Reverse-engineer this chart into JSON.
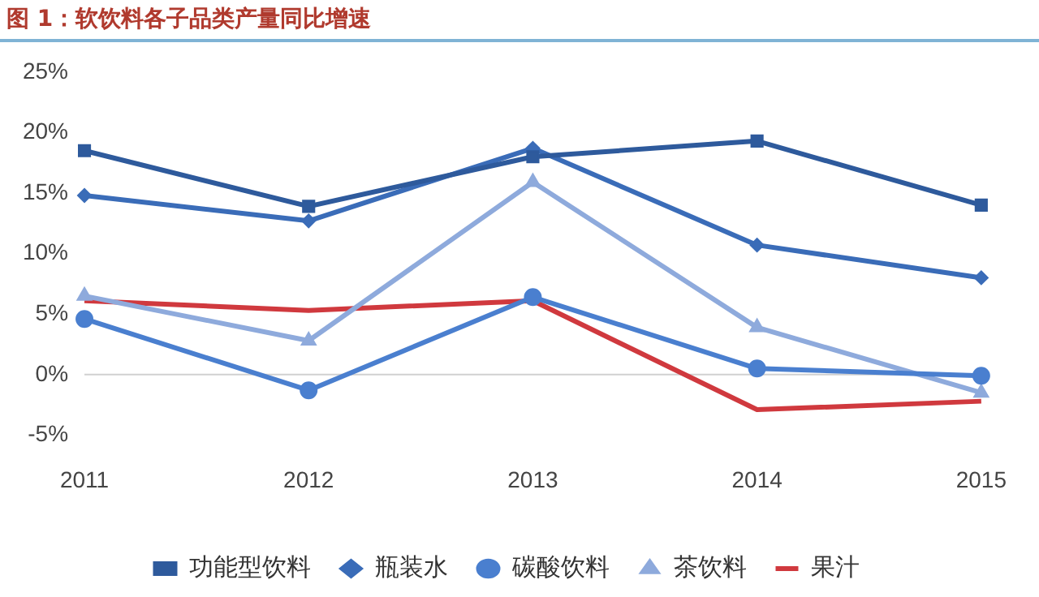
{
  "chart_data": {
    "type": "line",
    "title": "图 1：软饮料各子品类产量同比增速",
    "categories": [
      "2011",
      "2012",
      "2013",
      "2014",
      "2015"
    ],
    "series": [
      {
        "name": "功能型饮料",
        "color": "#2e5a9c",
        "marker": "square",
        "values": [
          18.5,
          13.9,
          18.0,
          19.3,
          14.0
        ]
      },
      {
        "name": "瓶装水",
        "color": "#3a6cb8",
        "marker": "diamond",
        "values": [
          14.8,
          12.7,
          18.7,
          10.7,
          8.0
        ]
      },
      {
        "name": "碳酸饮料",
        "color": "#4a7fcf",
        "marker": "circle",
        "values": [
          4.6,
          -1.3,
          6.4,
          0.5,
          -0.1
        ]
      },
      {
        "name": "茶饮料",
        "color": "#8eaadc",
        "marker": "triangle",
        "values": [
          6.5,
          2.8,
          15.9,
          3.9,
          -1.5
        ]
      },
      {
        "name": "果汁",
        "color": "#d0393e",
        "marker": "none",
        "values": [
          6.1,
          5.3,
          6.1,
          -2.9,
          -2.2
        ]
      }
    ],
    "ylim": [
      -5,
      25
    ],
    "yticks": [
      {
        "value": -5,
        "label": "-5%"
      },
      {
        "value": 0,
        "label": "0%"
      },
      {
        "value": 5,
        "label": "5%"
      },
      {
        "value": 10,
        "label": "10%"
      },
      {
        "value": 15,
        "label": "15%"
      },
      {
        "value": 20,
        "label": "20%"
      },
      {
        "value": 25,
        "label": "25%"
      }
    ],
    "ref_lines": [
      {
        "axis": "y",
        "value": 0,
        "color": "#d0d0d0"
      }
    ],
    "grid": false,
    "legend": "bottom"
  }
}
